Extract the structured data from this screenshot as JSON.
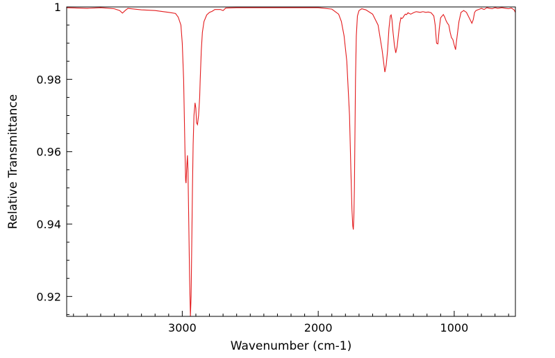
{
  "chart_data": {
    "type": "line",
    "title": "",
    "xlabel": "Wavenumber (cm-1)",
    "ylabel": "Relative Transmittance",
    "xlim": [
      3850,
      550
    ],
    "ylim": [
      0.9145,
      1.0
    ],
    "x_reversed": true,
    "grid": false,
    "x_ticks": [
      3000,
      2000,
      1000
    ],
    "x_tick_labels": [
      "3000",
      "2000",
      "1000"
    ],
    "y_ticks": [
      0.92,
      0.94,
      0.96,
      0.98,
      1.0
    ],
    "y_tick_labels": [
      "0.92",
      "0.94",
      "0.96",
      "0.98",
      "1"
    ],
    "colors": {
      "series": "#e31a1c",
      "axes": "#000000"
    },
    "series": [
      {
        "x": [
          3850,
          3700,
          3600,
          3500,
          3460,
          3440,
          3420,
          3400,
          3300,
          3200,
          3100,
          3050,
          3030,
          3010,
          3000,
          2990,
          2985,
          2980,
          2975,
          2972,
          2968,
          2962,
          2958,
          2952,
          2946,
          2940,
          2935,
          2930,
          2925,
          2920,
          2914,
          2906,
          2900,
          2895,
          2888,
          2880,
          2872,
          2868,
          2860,
          2852,
          2840,
          2820,
          2800,
          2780,
          2760,
          2720,
          2700,
          2680,
          2600,
          2400,
          2200,
          2000,
          1900,
          1850,
          1830,
          1810,
          1790,
          1770,
          1760,
          1752,
          1746,
          1742,
          1738,
          1734,
          1730,
          1726,
          1720,
          1712,
          1700,
          1680,
          1650,
          1600,
          1560,
          1530,
          1510,
          1500,
          1490,
          1480,
          1470,
          1464,
          1458,
          1450,
          1440,
          1430,
          1420,
          1410,
          1400,
          1392,
          1385,
          1378,
          1370,
          1360,
          1350,
          1340,
          1320,
          1300,
          1280,
          1250,
          1230,
          1210,
          1190,
          1170,
          1150,
          1140,
          1130,
          1120,
          1110,
          1100,
          1080,
          1070,
          1060,
          1050,
          1040,
          1030,
          1020,
          1010,
          1000,
          990,
          985,
          975,
          965,
          950,
          930,
          910,
          890,
          870,
          860,
          850,
          840,
          820,
          800,
          780,
          760,
          740,
          720,
          700,
          680,
          650,
          620,
          600,
          580,
          560,
          550
        ],
        "y": [
          0.9998,
          0.9996,
          0.9998,
          0.9995,
          0.999,
          0.9983,
          0.999,
          0.9996,
          0.9992,
          0.999,
          0.9985,
          0.9982,
          0.9972,
          0.995,
          0.99,
          0.98,
          0.97,
          0.96,
          0.952,
          0.9513,
          0.955,
          0.959,
          0.955,
          0.94,
          0.925,
          0.914,
          0.92,
          0.935,
          0.95,
          0.962,
          0.97,
          0.9735,
          0.972,
          0.968,
          0.9675,
          0.97,
          0.975,
          0.98,
          0.988,
          0.993,
          0.996,
          0.9978,
          0.9985,
          0.9988,
          0.9993,
          0.9993,
          0.999,
          0.9997,
          0.9998,
          0.9998,
          0.9998,
          0.9998,
          0.9994,
          0.998,
          0.996,
          0.992,
          0.985,
          0.97,
          0.955,
          0.944,
          0.9395,
          0.9385,
          0.942,
          0.95,
          0.965,
          0.98,
          0.992,
          0.9975,
          0.999,
          0.9995,
          0.9992,
          0.998,
          0.995,
          0.988,
          0.982,
          0.984,
          0.988,
          0.994,
          0.9975,
          0.9978,
          0.9965,
          0.993,
          0.9895,
          0.9873,
          0.989,
          0.9925,
          0.9955,
          0.997,
          0.9968,
          0.997,
          0.9975,
          0.998,
          0.9979,
          0.9984,
          0.998,
          0.9984,
          0.9987,
          0.9985,
          0.9987,
          0.9985,
          0.9986,
          0.9984,
          0.9975,
          0.995,
          0.99,
          0.9898,
          0.994,
          0.997,
          0.9979,
          0.9972,
          0.9962,
          0.9955,
          0.995,
          0.993,
          0.9915,
          0.991,
          0.9895,
          0.9882,
          0.99,
          0.993,
          0.996,
          0.9985,
          0.999,
          0.9985,
          0.997,
          0.9955,
          0.9965,
          0.9985,
          0.999,
          0.9993,
          0.9996,
          0.9993,
          0.9998,
          0.9996,
          0.9995,
          0.9998,
          0.9996,
          0.9998,
          0.9996,
          0.9995,
          0.9997,
          0.9992,
          0.9985
        ]
      }
    ]
  }
}
